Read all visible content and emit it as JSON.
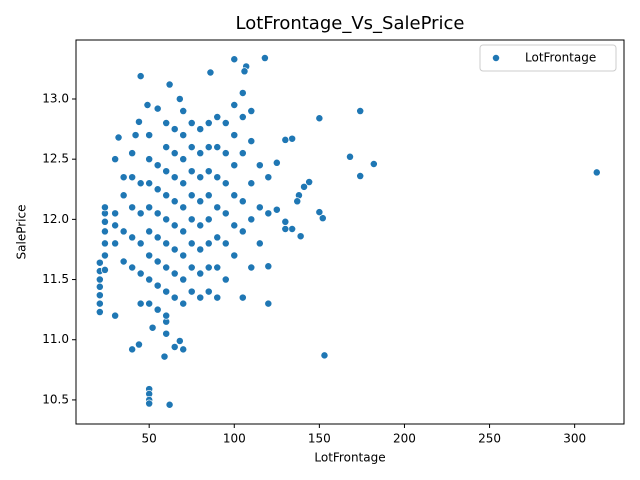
{
  "chart_data": {
    "type": "scatter",
    "title": "LotFrontage_Vs_SalePrice",
    "x_label": "LotFrontage",
    "y_label": "SalePrice",
    "xlim": [
      7,
      329
    ],
    "ylim": [
      10.3,
      13.49
    ],
    "xticks": [
      50,
      100,
      150,
      200,
      250,
      300
    ],
    "yticks": [
      10.5,
      {
        "value": 11,
        "label": "11.0"
      },
      11.5,
      {
        "value": 12,
        "label": "12.0"
      },
      12.5,
      {
        "value": 13,
        "label": "13.0"
      }
    ],
    "legend": "upper right",
    "series": [
      {
        "name": "LotFrontage",
        "color": "#1f77b4",
        "x": [
          313,
          153,
          174,
          174,
          182,
          168,
          150,
          152,
          150,
          144,
          141,
          138,
          137,
          139,
          134,
          130,
          130,
          134,
          130,
          120,
          120,
          118,
          107,
          106,
          100,
          86,
          45,
          62,
          68,
          55,
          49,
          59,
          62,
          50,
          50,
          50,
          50,
          40,
          44,
          52,
          70,
          68,
          65,
          30,
          21,
          21,
          21,
          21,
          21,
          21,
          21,
          24,
          24,
          24,
          24,
          24,
          24,
          24,
          30,
          32,
          35,
          40,
          42,
          44,
          60,
          60,
          60,
          60,
          60,
          60,
          60,
          60,
          60,
          60,
          60,
          50,
          50,
          50,
          50,
          50,
          50,
          50,
          50,
          65,
          65,
          65,
          65,
          65,
          65,
          65,
          65,
          70,
          70,
          70,
          70,
          70,
          70,
          70,
          70,
          70,
          75,
          75,
          75,
          75,
          75,
          75,
          75,
          75,
          80,
          80,
          80,
          80,
          80,
          80,
          80,
          80,
          85,
          85,
          85,
          85,
          85,
          85,
          85,
          85,
          90,
          90,
          90,
          90,
          90,
          90,
          90,
          95,
          95,
          95,
          95,
          95,
          95,
          100,
          100,
          100,
          100,
          100,
          100,
          105,
          105,
          105,
          105,
          105,
          105,
          110,
          110,
          110,
          110,
          110,
          115,
          115,
          115,
          120,
          120,
          125,
          125,
          55,
          55,
          55,
          55,
          55,
          55,
          55,
          45,
          45,
          45,
          45,
          45,
          40,
          40,
          40,
          40,
          35,
          35,
          35,
          30,
          30,
          30
        ],
        "values": [
          12.39,
          10.87,
          12.9,
          12.36,
          12.46,
          12.52,
          12.84,
          12.01,
          12.06,
          12.31,
          12.27,
          12.2,
          12.15,
          11.86,
          11.92,
          11.92,
          11.98,
          12.67,
          12.66,
          11.3,
          11.61,
          13.34,
          13.27,
          13.23,
          13.33,
          13.22,
          13.19,
          13.12,
          13.0,
          12.92,
          12.95,
          10.86,
          10.46,
          10.59,
          10.55,
          10.5,
          10.47,
          10.92,
          10.96,
          11.1,
          10.92,
          10.99,
          10.94,
          11.2,
          11.23,
          11.3,
          11.37,
          11.44,
          11.5,
          11.57,
          11.64,
          11.58,
          11.7,
          11.8,
          11.9,
          11.98,
          12.05,
          12.1,
          12.5,
          12.68,
          12.35,
          12.55,
          12.7,
          12.81,
          11.05,
          11.15,
          11.2,
          11.4,
          11.6,
          11.8,
          12.0,
          12.2,
          12.4,
          12.6,
          12.8,
          11.3,
          11.5,
          11.7,
          11.9,
          12.1,
          12.3,
          12.5,
          12.7,
          11.35,
          11.55,
          11.75,
          11.95,
          12.15,
          12.35,
          12.55,
          12.75,
          11.3,
          11.5,
          11.7,
          11.9,
          12.1,
          12.3,
          12.5,
          12.7,
          12.9,
          11.4,
          11.6,
          11.8,
          12.0,
          12.2,
          12.4,
          12.6,
          12.8,
          11.35,
          11.55,
          11.75,
          11.95,
          12.15,
          12.35,
          12.55,
          12.75,
          11.4,
          11.6,
          11.8,
          12.0,
          12.2,
          12.4,
          12.6,
          12.8,
          11.35,
          11.6,
          11.85,
          12.1,
          12.35,
          12.6,
          12.85,
          11.5,
          11.8,
          12.05,
          12.3,
          12.55,
          12.8,
          11.7,
          11.95,
          12.2,
          12.45,
          12.7,
          12.95,
          11.35,
          11.9,
          12.15,
          12.55,
          12.85,
          13.05,
          11.6,
          12.0,
          12.3,
          12.65,
          12.9,
          11.8,
          12.1,
          12.45,
          12.05,
          12.35,
          12.08,
          12.47,
          11.25,
          11.45,
          11.65,
          11.85,
          12.05,
          12.25,
          12.45,
          11.3,
          11.55,
          11.8,
          12.05,
          12.3,
          11.6,
          11.85,
          12.1,
          12.35,
          11.65,
          11.9,
          12.2,
          11.8,
          11.95,
          12.05
        ]
      }
    ]
  }
}
